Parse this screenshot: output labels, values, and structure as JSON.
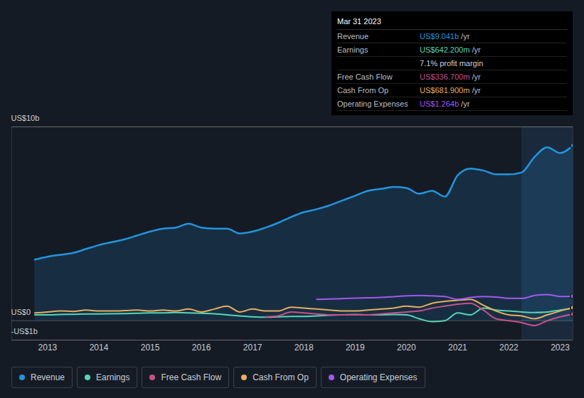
{
  "chart_data": {
    "type": "line",
    "x": [
      2012.75,
      2013,
      2013.25,
      2013.5,
      2013.75,
      2014,
      2014.25,
      2014.5,
      2014.75,
      2015,
      2015.25,
      2015.5,
      2015.75,
      2016,
      2016.25,
      2016.5,
      2016.75,
      2017,
      2017.25,
      2017.5,
      2017.75,
      2018,
      2018.25,
      2018.5,
      2018.75,
      2019,
      2019.25,
      2019.5,
      2019.75,
      2020,
      2020.25,
      2020.5,
      2020.75,
      2021,
      2021.25,
      2021.5,
      2021.75,
      2022,
      2022.25,
      2022.5,
      2022.75,
      2023,
      2023.25
    ],
    "series": [
      {
        "name": "Revenue",
        "color": "#2394df",
        "type": "area",
        "values": [
          3.15,
          3.3,
          3.4,
          3.5,
          3.7,
          3.9,
          4.05,
          4.2,
          4.4,
          4.6,
          4.75,
          4.8,
          5.0,
          4.8,
          4.75,
          4.75,
          4.5,
          4.6,
          4.8,
          5.05,
          5.35,
          5.6,
          5.75,
          5.95,
          6.2,
          6.45,
          6.7,
          6.8,
          6.9,
          6.85,
          6.55,
          6.7,
          6.4,
          7.5,
          7.85,
          7.75,
          7.55,
          7.55,
          7.65,
          8.45,
          8.95,
          8.65,
          9.041
        ]
      },
      {
        "name": "Earnings",
        "color": "#58d5b5",
        "values": [
          0.3,
          0.3,
          0.32,
          0.33,
          0.35,
          0.35,
          0.36,
          0.37,
          0.38,
          0.4,
          0.4,
          0.42,
          0.4,
          0.38,
          0.36,
          0.3,
          0.25,
          0.2,
          0.18,
          0.2,
          0.22,
          0.22,
          0.25,
          0.28,
          0.3,
          0.32,
          0.3,
          0.3,
          0.32,
          0.3,
          0.1,
          -0.05,
          0.0,
          0.4,
          0.3,
          0.65,
          0.55,
          0.5,
          0.45,
          0.42,
          0.45,
          0.55,
          0.6422
        ]
      },
      {
        "name": "Free Cash Flow",
        "color": "#c8508a",
        "values": [
          null,
          null,
          null,
          null,
          null,
          null,
          null,
          null,
          null,
          null,
          null,
          null,
          null,
          null,
          null,
          null,
          null,
          null,
          0.2,
          0.25,
          0.45,
          0.4,
          0.35,
          0.3,
          0.3,
          0.3,
          0.3,
          0.35,
          0.4,
          0.45,
          0.5,
          0.65,
          0.75,
          0.85,
          0.9,
          0.55,
          0.1,
          0.0,
          -0.1,
          -0.25,
          0.0,
          0.2,
          0.3367
        ]
      },
      {
        "name": "Cash From Op",
        "color": "#e8ad62",
        "values": [
          0.4,
          0.45,
          0.5,
          0.48,
          0.55,
          0.5,
          0.5,
          0.52,
          0.55,
          0.5,
          0.55,
          0.5,
          0.6,
          0.45,
          0.6,
          0.75,
          0.45,
          0.6,
          0.5,
          0.5,
          0.7,
          0.65,
          0.6,
          0.55,
          0.5,
          0.5,
          0.55,
          0.6,
          0.65,
          0.75,
          0.7,
          0.9,
          1.0,
          1.05,
          1.1,
          0.8,
          0.5,
          0.3,
          0.25,
          0.1,
          0.3,
          0.5,
          0.6819
        ]
      },
      {
        "name": "Operating Expenses",
        "color": "#a458ef",
        "values": [
          null,
          null,
          null,
          null,
          null,
          null,
          null,
          null,
          null,
          null,
          null,
          null,
          null,
          null,
          null,
          null,
          null,
          null,
          null,
          null,
          null,
          null,
          1.1,
          1.12,
          1.14,
          1.16,
          1.18,
          1.2,
          1.24,
          1.28,
          1.3,
          1.28,
          1.25,
          1.1,
          1.2,
          1.25,
          1.22,
          1.15,
          1.15,
          1.3,
          1.35,
          1.25,
          1.264
        ]
      }
    ],
    "xlim": [
      2012.3,
      2023.25
    ],
    "xticks": [
      2013,
      2014,
      2015,
      2016,
      2017,
      2018,
      2019,
      2020,
      2021,
      2022,
      2023
    ],
    "ylim": [
      -1,
      10
    ],
    "yticks": [
      {
        "value": -1,
        "label": "-US$1b"
      },
      {
        "value": 0,
        "label": "US$0"
      },
      {
        "value": 10,
        "label": "US$10b"
      }
    ],
    "grid": true,
    "legend": "bottom",
    "annotations": {
      "date": "Mar 31 2023",
      "rows": [
        {
          "label": "Revenue",
          "value": "US$9.041b",
          "unit": "/yr"
        },
        {
          "label": "Earnings",
          "value": "US$642.200m",
          "unit": "/yr"
        },
        {
          "label": "",
          "value": "7.1% profit margin"
        },
        {
          "label": "Free Cash Flow",
          "value": "US$336.700m",
          "unit": "/yr"
        },
        {
          "label": "Cash From Op",
          "value": "US$681.900m",
          "unit": "/yr"
        },
        {
          "label": "Operating Expenses",
          "value": "US$1.264b",
          "unit": "/yr"
        }
      ]
    }
  }
}
